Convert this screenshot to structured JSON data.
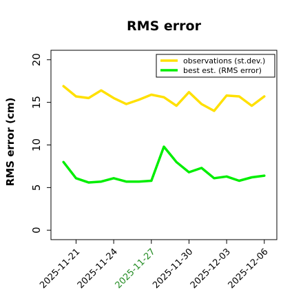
{
  "chart_data": {
    "type": "line",
    "title": "RMS error",
    "xlabel": "",
    "ylabel": "RMS error (cm)",
    "ylim": [
      0,
      20
    ],
    "yticks": [
      0,
      5,
      10,
      15,
      20
    ],
    "x": [
      "2025-11-20",
      "2025-11-21",
      "2025-11-22",
      "2025-11-23",
      "2025-11-24",
      "2025-11-25",
      "2025-11-26",
      "2025-11-27",
      "2025-11-28",
      "2025-11-29",
      "2025-11-30",
      "2025-12-01",
      "2025-12-02",
      "2025-12-03",
      "2025-12-04",
      "2025-12-05",
      "2025-12-06"
    ],
    "xlim": [
      "2025-11-19",
      "2025-12-07"
    ],
    "xticks": [
      {
        "label": "2025-11-21",
        "date": "2025-11-21",
        "color": "#000000"
      },
      {
        "label": "2025-11-24",
        "date": "2025-11-24",
        "color": "#000000"
      },
      {
        "label": "2025-11-27",
        "date": "2025-11-27",
        "color": "#228B22"
      },
      {
        "label": "2025-11-30",
        "date": "2025-11-30",
        "color": "#000000"
      },
      {
        "label": "2025-12-03",
        "date": "2025-12-03",
        "color": "#000000"
      },
      {
        "label": "2025-12-06",
        "date": "2025-12-06",
        "color": "#000000"
      }
    ],
    "series": [
      {
        "name": "observations (st.dev.)",
        "color": "#FFE000",
        "values": [
          16.9,
          15.7,
          15.5,
          16.4,
          15.5,
          14.8,
          15.3,
          15.9,
          15.6,
          14.6,
          16.2,
          14.8,
          14.0,
          15.8,
          15.7,
          14.6,
          15.7
        ]
      },
      {
        "name": "best est. (RMS error)",
        "color": "#00EE00",
        "values": [
          8.0,
          6.1,
          5.6,
          5.7,
          6.1,
          5.7,
          5.7,
          5.8,
          9.8,
          8.0,
          6.8,
          7.3,
          6.1,
          6.3,
          5.8,
          6.2,
          6.4
        ]
      }
    ],
    "legend_position": "top-right",
    "grid": false
  }
}
